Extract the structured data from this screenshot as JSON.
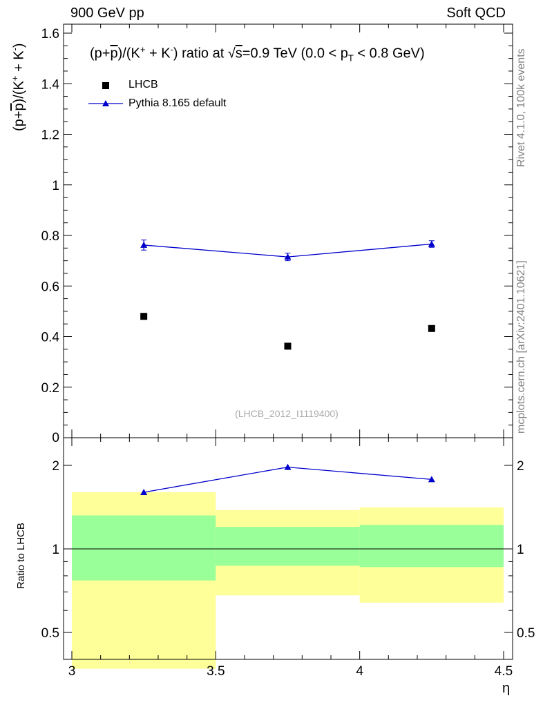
{
  "header": {
    "left": "900 GeV pp",
    "right": "Soft QCD"
  },
  "side_labels": {
    "rivet": "Rivet 4.1.0,  100k events",
    "mcplots": "mcplots.cern.ch [arXiv:2401.10621]"
  },
  "title": {
    "prefix": "(p+",
    "pbar": "p",
    "mid1": ")/(K",
    "mid2": " + K",
    "mid3": ") ratio at ",
    "sqrt": "√",
    "s": "s",
    "energy": "=0.9 TeV (0.0 < p",
    "sub_t": "T",
    "suffix": " < 0.8 GeV)",
    "plus": "+",
    "minus": "-"
  },
  "ylabel": {
    "p1": "(p+",
    "pbar": "p",
    "p2": ")/(K",
    "p3": " + K",
    "p4": ")",
    "plus": "+",
    "minus": "-"
  },
  "ratio_ylabel": "Ratio to LHCB",
  "xlabel": "η",
  "watermark": "(LHCB_2012_I1119400)",
  "legend": {
    "data": "LHCB",
    "mc": "Pythia 8.165 default"
  },
  "colors": {
    "mc": "#0000cc",
    "data": "#000000",
    "band_inner": "#99ff99",
    "band_outer": "#ffff99"
  },
  "chart_data": {
    "type": "scatter",
    "xlabel": "η",
    "ylabel": "(p+p̄)/(K+ + K-)",
    "xlim": [
      3.0,
      4.5
    ],
    "ylim": [
      0,
      1.6
    ],
    "x_ticks": [
      "3",
      "3.5",
      "4",
      "4.5"
    ],
    "y_ticks": [
      "0.2",
      "0.4",
      "0.6",
      "0.8",
      "1",
      "1.2",
      "1.4",
      "1.6"
    ],
    "series": [
      {
        "name": "LHCB",
        "x": [
          3.25,
          3.75,
          4.25
        ],
        "values": [
          0.48,
          0.362,
          0.432
        ]
      },
      {
        "name": "Pythia 8.165 default",
        "x": [
          3.25,
          3.75,
          4.25
        ],
        "values": [
          0.762,
          0.715,
          0.766
        ],
        "errors": [
          0.02,
          0.015,
          0.013
        ]
      }
    ],
    "ratio": {
      "ylabel": "Ratio to LHCB",
      "ylim": [
        0.4,
        2.3
      ],
      "scale": "log",
      "y_ticks": [
        "0.5",
        "1",
        "2"
      ],
      "mc_values": [
        1.6,
        1.97,
        1.78
      ],
      "bins": [
        [
          3.0,
          3.5
        ],
        [
          3.5,
          4.0
        ],
        [
          4.0,
          4.5
        ]
      ],
      "band_inner": [
        [
          0.77,
          1.32
        ],
        [
          0.87,
          1.2
        ],
        [
          0.86,
          1.22
        ]
      ],
      "band_outer": [
        [
          0.37,
          1.6
        ],
        [
          0.68,
          1.38
        ],
        [
          0.64,
          1.41
        ]
      ]
    }
  }
}
